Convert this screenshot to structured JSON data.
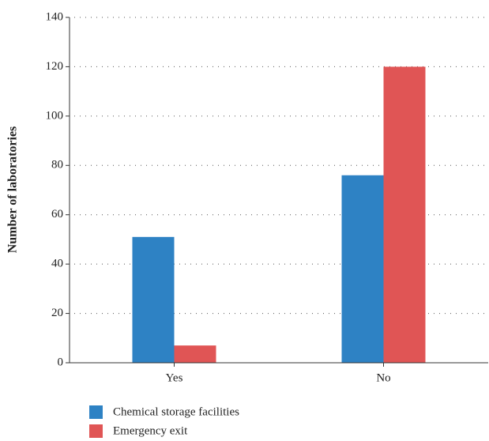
{
  "chart_data": {
    "type": "bar",
    "ylabel": "Number of laboratories",
    "categories": [
      "Yes",
      "No"
    ],
    "series": [
      {
        "name": "Chemical storage facilities",
        "color": "#2e82c4",
        "values": [
          51,
          76
        ]
      },
      {
        "name": "Emergency exit",
        "color": "#e05555",
        "values": [
          7,
          120
        ]
      }
    ],
    "ylim": [
      0,
      140
    ],
    "yticks": [
      0,
      20,
      40,
      60,
      80,
      100,
      120,
      140
    ],
    "grid": true,
    "legend": "bottom-left"
  }
}
